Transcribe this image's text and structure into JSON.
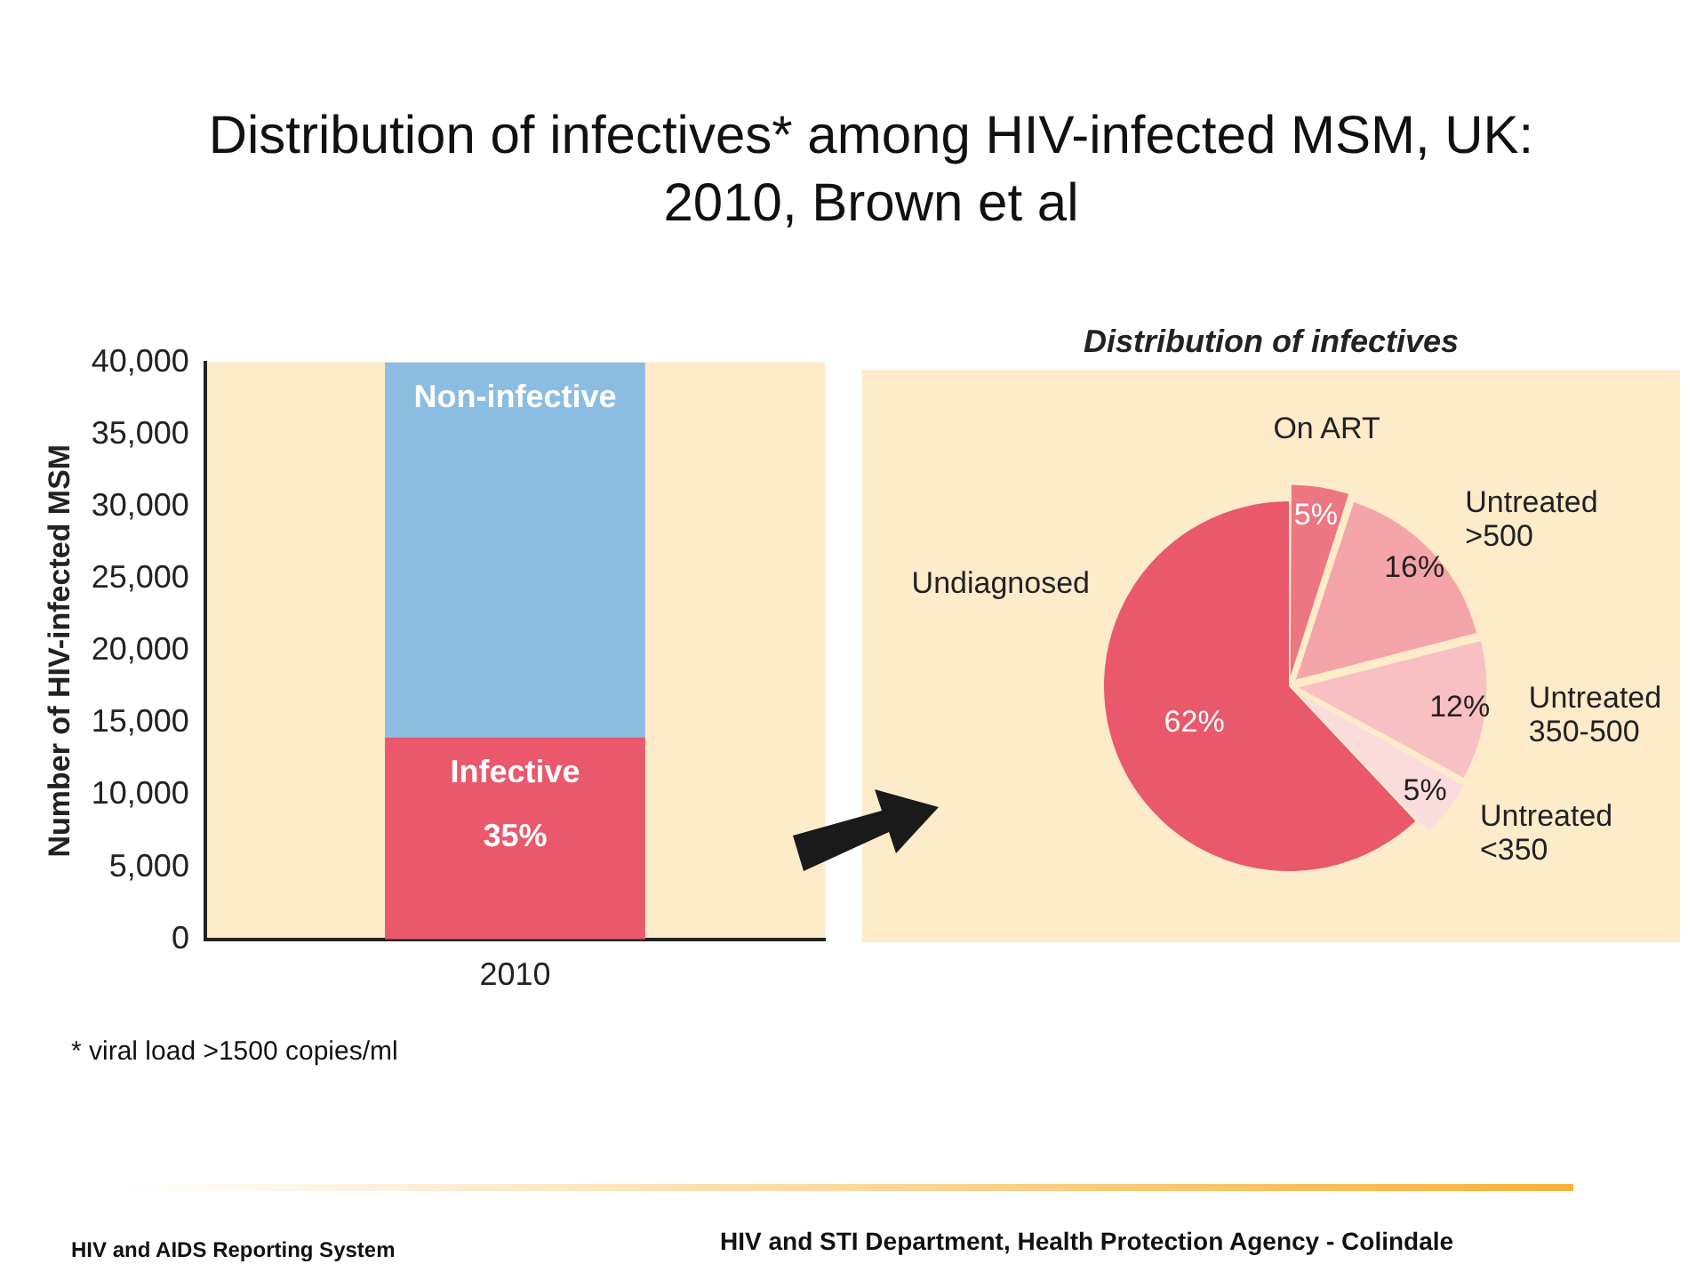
{
  "chart_data": [
    {
      "type": "bar",
      "title": "Distribution of infectives* among HIV-infected MSM, UK: 2010, Brown et al",
      "ylabel": "Number of HIV-infected MSM",
      "categories": [
        "2010"
      ],
      "stacked": true,
      "series": [
        {
          "name": "Infective",
          "color": "#e9586b",
          "values": [
            14000
          ]
        },
        {
          "name": "Non-infective",
          "color": "#8bbde3",
          "values": [
            26000
          ]
        }
      ],
      "ylim": [
        0,
        40000
      ],
      "yticks": [
        0,
        {
          "value": 5000,
          "label": "5,000"
        },
        {
          "value": 10000,
          "label": "10,000"
        },
        {
          "value": 15000,
          "label": "15,000"
        },
        {
          "value": 20000,
          "label": "20,000"
        },
        {
          "value": 25000,
          "label": "25,000"
        },
        {
          "value": 30000,
          "label": "30,000"
        },
        {
          "value": 35000,
          "label": "35,000"
        },
        {
          "value": 40000,
          "label": "40,000"
        }
      ],
      "grid": false,
      "legend": false,
      "annotations": [
        "35%",
        "* viral load >1500 copies/ml",
        "HIV and AIDS Reporting System",
        "HIV and STI Department, Health Protection Agency - Colindale"
      ]
    },
    {
      "type": "pie",
      "title": "Distribution of infectives",
      "categories": [
        "On ART",
        "Untreated >500",
        "Untreated 350-500",
        "Untreated <350",
        "Undiagnosed"
      ],
      "values": [
        5,
        16,
        12,
        5,
        62
      ],
      "colors": [
        "#ec7782",
        "#f4a4a8",
        "#f8c0c2",
        "#fadcdd",
        "#e9586b"
      ],
      "value_labels": [
        "5%",
        "16%",
        "12%",
        "5%",
        "62%"
      ],
      "legend": false
    }
  ]
}
